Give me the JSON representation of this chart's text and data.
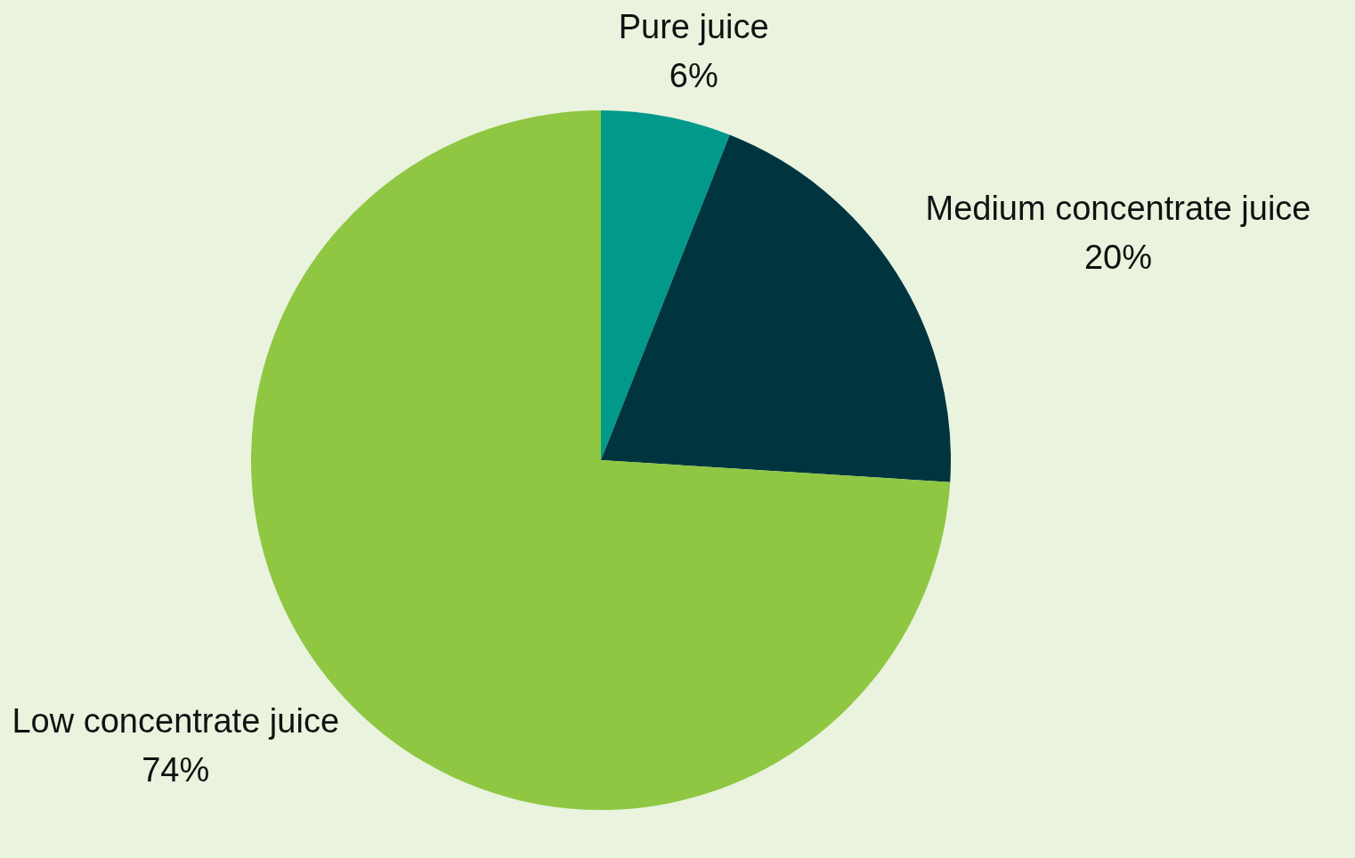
{
  "chart_data": {
    "type": "pie",
    "categories": [
      "Pure juice",
      "Medium concentrate juice",
      "Low concentrate juice"
    ],
    "values": [
      6,
      20,
      74
    ],
    "value_labels": [
      "6%",
      "20%",
      "74%"
    ],
    "colors": [
      "#00998a",
      "#003540",
      "#8fc742"
    ],
    "legend": false
  }
}
